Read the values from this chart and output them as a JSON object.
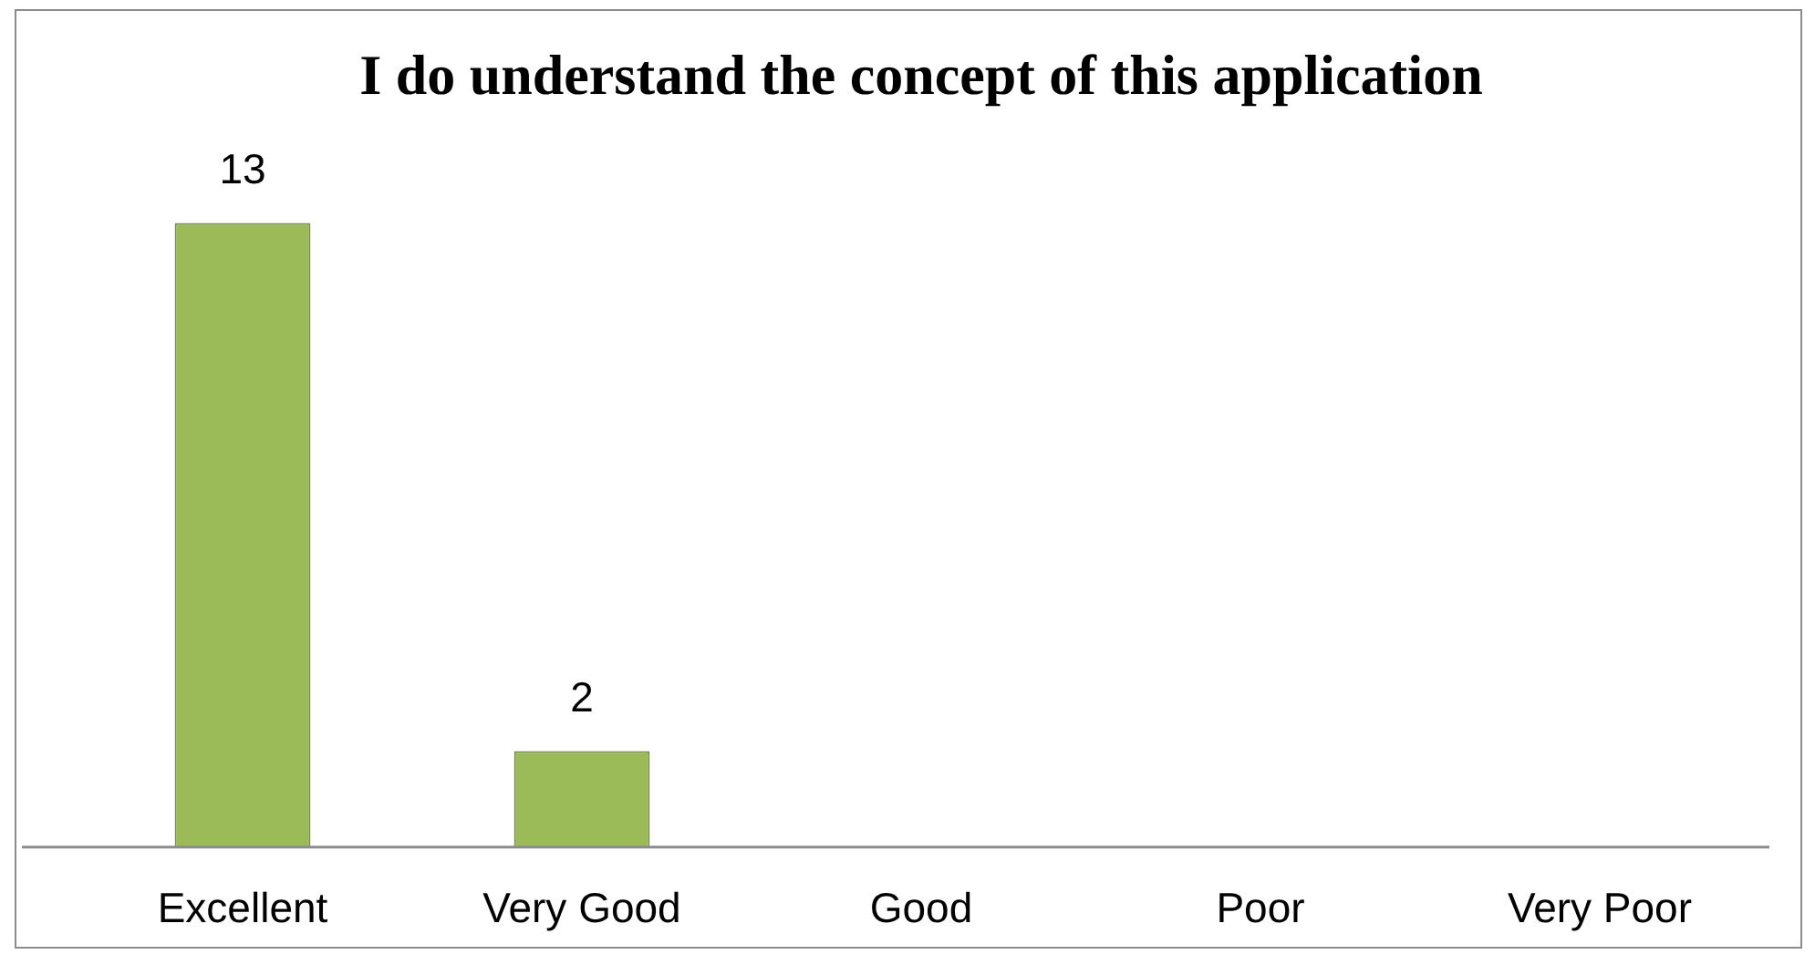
{
  "chart_data": {
    "type": "bar",
    "title": "I do understand the concept of this application",
    "categories": [
      "Excellent",
      "Very Good",
      "Good",
      "Poor",
      "Very Poor"
    ],
    "values": [
      13,
      2,
      0,
      0,
      0
    ],
    "color": "#9bbb59",
    "value_labels": [
      "13",
      "2",
      null,
      null,
      null
    ]
  }
}
